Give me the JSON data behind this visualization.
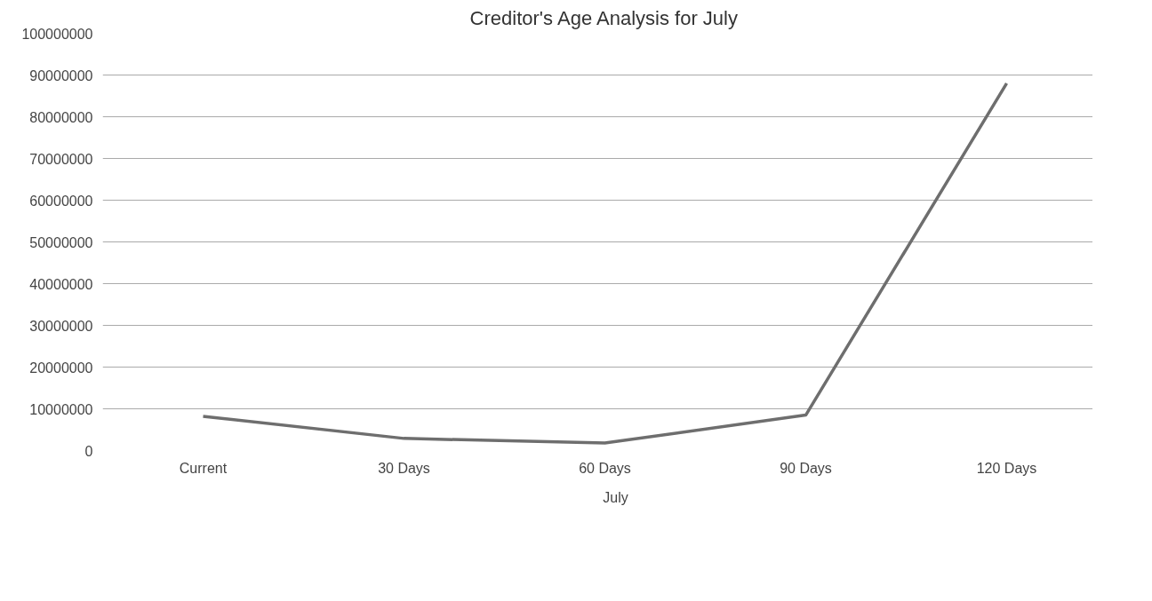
{
  "chart_data": {
    "type": "line",
    "title": "Creditor's Age Analysis for July",
    "categories": [
      "Current",
      "30 Days",
      "60 Days",
      "90 Days",
      "120 Days"
    ],
    "series": [
      {
        "name": "July",
        "color": "#6e6e6e",
        "values": [
          8200000,
          2900000,
          1800000,
          8500000,
          88000000
        ]
      }
    ],
    "ylim": [
      0,
      100000000
    ],
    "yticks": [
      0,
      10000000,
      20000000,
      30000000,
      40000000,
      50000000,
      60000000,
      70000000,
      80000000,
      90000000,
      100000000
    ],
    "grid": "y",
    "legend": "bottom",
    "marker": "none",
    "line_style": "solid"
  }
}
